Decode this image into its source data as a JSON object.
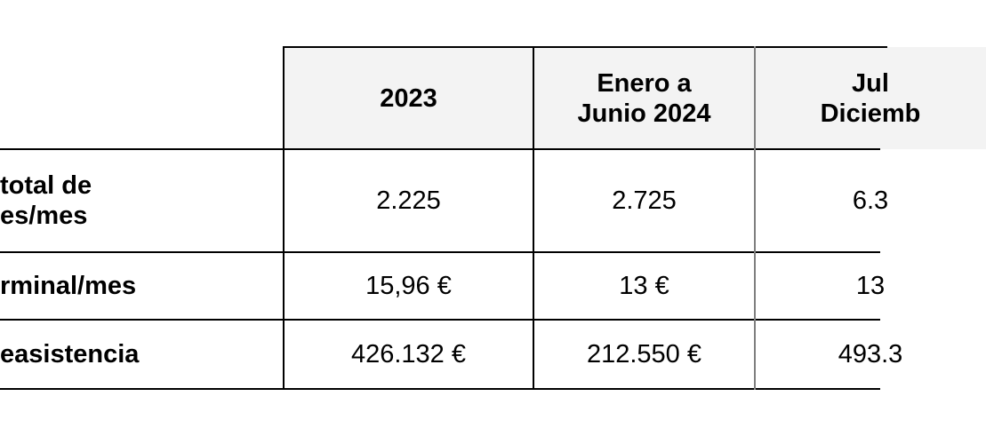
{
  "table": {
    "headers": [
      "2023",
      "Enero a",
      "Junio 2024",
      "Jul",
      "Diciemb"
    ],
    "rows": [
      {
        "label_lines": [
          "total de",
          "es/mes"
        ],
        "values": [
          "2.225",
          "2.725",
          "6.3"
        ]
      },
      {
        "label_lines": [
          "rminal/mes"
        ],
        "values": [
          "15,96 €",
          "13 €",
          "13"
        ]
      },
      {
        "label_lines": [
          "easistencia"
        ],
        "values": [
          "426.132 €",
          "212.550 €",
          "493.3"
        ]
      }
    ]
  }
}
